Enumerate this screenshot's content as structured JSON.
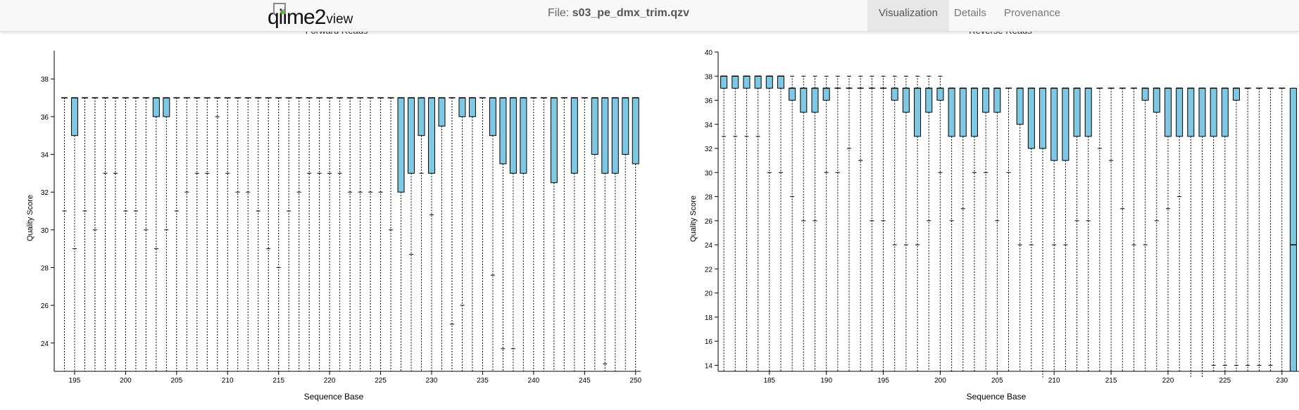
{
  "header": {
    "logo_main": "qiime2",
    "logo_sub": "view",
    "file_prefix": "File:",
    "file_name": "s03_pe_dmx_trim.qzv",
    "tabs": [
      {
        "label": "Visualization",
        "active": true
      },
      {
        "label": "Details",
        "active": false
      },
      {
        "label": "Provenance",
        "active": false
      }
    ]
  },
  "chart_data": [
    {
      "type": "box",
      "title": "Forward Reads",
      "xlabel": "Sequence Base",
      "ylabel": "Quality Score",
      "xlim": [
        193,
        250.5
      ],
      "ylim": [
        22.5,
        39.5
      ],
      "xticks": [
        195,
        200,
        205,
        210,
        215,
        220,
        225,
        230,
        235,
        240,
        245,
        250
      ],
      "yticks": [
        24,
        26,
        28,
        30,
        32,
        34,
        36,
        38
      ],
      "box_color": "#7ec8e3",
      "boxes": [
        {
          "x": 194,
          "lw": 31,
          "q1": 37,
          "med": 37,
          "q3": 37,
          "uw": 37
        },
        {
          "x": 195,
          "lw": 29,
          "q1": 35,
          "med": 37,
          "q3": 37,
          "uw": 37
        },
        {
          "x": 196,
          "lw": 31,
          "q1": 37,
          "med": 37,
          "q3": 37,
          "uw": 37
        },
        {
          "x": 197,
          "lw": 30,
          "q1": 37,
          "med": 37,
          "q3": 37,
          "uw": 37
        },
        {
          "x": 198,
          "lw": 33,
          "q1": 37,
          "med": 37,
          "q3": 37,
          "uw": 37
        },
        {
          "x": 199,
          "lw": 33,
          "q1": 37,
          "med": 37,
          "q3": 37,
          "uw": 37
        },
        {
          "x": 200,
          "lw": 31,
          "q1": 37,
          "med": 37,
          "q3": 37,
          "uw": 37
        },
        {
          "x": 201,
          "lw": 31,
          "q1": 37,
          "med": 37,
          "q3": 37,
          "uw": 37
        },
        {
          "x": 202,
          "lw": 30,
          "q1": 37,
          "med": 37,
          "q3": 37,
          "uw": 37
        },
        {
          "x": 203,
          "lw": 29,
          "q1": 36,
          "med": 37,
          "q3": 37,
          "uw": 37
        },
        {
          "x": 204,
          "lw": 30,
          "q1": 36,
          "med": 37,
          "q3": 37,
          "uw": 37
        },
        {
          "x": 205,
          "lw": 31,
          "q1": 37,
          "med": 37,
          "q3": 37,
          "uw": 37
        },
        {
          "x": 206,
          "lw": 32,
          "q1": 37,
          "med": 37,
          "q3": 37,
          "uw": 37
        },
        {
          "x": 207,
          "lw": 33,
          "q1": 37,
          "med": 37,
          "q3": 37,
          "uw": 37
        },
        {
          "x": 208,
          "lw": 33,
          "q1": 37,
          "med": 37,
          "q3": 37,
          "uw": 37
        },
        {
          "x": 209,
          "lw": 36,
          "q1": 37,
          "med": 37,
          "q3": 37,
          "uw": 37
        },
        {
          "x": 210,
          "lw": 33,
          "q1": 37,
          "med": 37,
          "q3": 37,
          "uw": 37
        },
        {
          "x": 211,
          "lw": 32,
          "q1": 37,
          "med": 37,
          "q3": 37,
          "uw": 37
        },
        {
          "x": 212,
          "lw": 32,
          "q1": 37,
          "med": 37,
          "q3": 37,
          "uw": 37
        },
        {
          "x": 213,
          "lw": 31,
          "q1": 37,
          "med": 37,
          "q3": 37,
          "uw": 37
        },
        {
          "x": 214,
          "lw": 29,
          "q1": 37,
          "med": 37,
          "q3": 37,
          "uw": 37
        },
        {
          "x": 215,
          "lw": 28,
          "q1": 37,
          "med": 37,
          "q3": 37,
          "uw": 37
        },
        {
          "x": 216,
          "lw": 31,
          "q1": 37,
          "med": 37,
          "q3": 37,
          "uw": 37
        },
        {
          "x": 217,
          "lw": 32,
          "q1": 37,
          "med": 37,
          "q3": 37,
          "uw": 37
        },
        {
          "x": 218,
          "lw": 33,
          "q1": 37,
          "med": 37,
          "q3": 37,
          "uw": 37
        },
        {
          "x": 219,
          "lw": 33,
          "q1": 37,
          "med": 37,
          "q3": 37,
          "uw": 37
        },
        {
          "x": 220,
          "lw": 33,
          "q1": 37,
          "med": 37,
          "q3": 37,
          "uw": 37
        },
        {
          "x": 221,
          "lw": 33,
          "q1": 37,
          "med": 37,
          "q3": 37,
          "uw": 37
        },
        {
          "x": 222,
          "lw": 32,
          "q1": 37,
          "med": 37,
          "q3": 37,
          "uw": 37
        },
        {
          "x": 223,
          "lw": 32,
          "q1": 37,
          "med": 37,
          "q3": 37,
          "uw": 37
        },
        {
          "x": 224,
          "lw": 32,
          "q1": 37,
          "med": 37,
          "q3": 37,
          "uw": 37
        },
        {
          "x": 225,
          "lw": 32,
          "q1": 37,
          "med": 37,
          "q3": 37,
          "uw": 37
        },
        {
          "x": 226,
          "lw": 30,
          "q1": 37,
          "med": 37,
          "q3": 37,
          "uw": 37
        },
        {
          "x": 227,
          "lw": 22.5,
          "q1": 32,
          "med": 37,
          "q3": 37,
          "uw": 37
        },
        {
          "x": 228,
          "lw": 28.7,
          "q1": 33,
          "med": 37,
          "q3": 37,
          "uw": 37
        },
        {
          "x": 229,
          "lw": 33,
          "q1": 35,
          "med": 37,
          "q3": 37,
          "uw": 37
        },
        {
          "x": 230,
          "lw": 30.8,
          "q1": 33,
          "med": 37,
          "q3": 37,
          "uw": 37
        },
        {
          "x": 231,
          "lw": 22.5,
          "q1": 35.5,
          "med": 37,
          "q3": 37,
          "uw": 37
        },
        {
          "x": 232,
          "lw": 25,
          "q1": 37,
          "med": 37,
          "q3": 37,
          "uw": 37
        },
        {
          "x": 233,
          "lw": 26,
          "q1": 36,
          "med": 37,
          "q3": 37,
          "uw": 37
        },
        {
          "x": 234,
          "lw": 22.5,
          "q1": 36,
          "med": 37,
          "q3": 37,
          "uw": 37
        },
        {
          "x": 235,
          "lw": 22.5,
          "q1": 37,
          "med": 37,
          "q3": 37,
          "uw": 37
        },
        {
          "x": 236,
          "lw": 27.6,
          "q1": 35,
          "med": 37,
          "q3": 37,
          "uw": 37
        },
        {
          "x": 237,
          "lw": 23.7,
          "q1": 33.5,
          "med": 37,
          "q3": 37,
          "uw": 37
        },
        {
          "x": 238,
          "lw": 23.7,
          "q1": 33,
          "med": 37,
          "q3": 37,
          "uw": 37
        },
        {
          "x": 239,
          "lw": 22.5,
          "q1": 33,
          "med": 37,
          "q3": 37,
          "uw": 37
        },
        {
          "x": 240,
          "lw": 22.5,
          "q1": 37,
          "med": 37,
          "q3": 37,
          "uw": 37
        },
        {
          "x": 241,
          "lw": 22.5,
          "q1": 37,
          "med": 37,
          "q3": 37,
          "uw": 37
        },
        {
          "x": 242,
          "lw": 22.5,
          "q1": 32.5,
          "med": 37,
          "q3": 37,
          "uw": 37
        },
        {
          "x": 243,
          "lw": 22.5,
          "q1": 37,
          "med": 37,
          "q3": 37,
          "uw": 37
        },
        {
          "x": 244,
          "lw": 22.5,
          "q1": 33,
          "med": 37,
          "q3": 37,
          "uw": 37
        },
        {
          "x": 245,
          "lw": 22.5,
          "q1": 37,
          "med": 37,
          "q3": 37,
          "uw": 37
        },
        {
          "x": 246,
          "lw": 22.5,
          "q1": 34,
          "med": 37,
          "q3": 37,
          "uw": 37
        },
        {
          "x": 247,
          "lw": 22.9,
          "q1": 33,
          "med": 37,
          "q3": 37,
          "uw": 37
        },
        {
          "x": 248,
          "lw": 22.4,
          "q1": 33,
          "med": 37,
          "q3": 37,
          "uw": 37
        },
        {
          "x": 249,
          "lw": 22.5,
          "q1": 34,
          "med": 37,
          "q3": 37,
          "uw": 37
        },
        {
          "x": 250,
          "lw": 22.5,
          "q1": 33.5,
          "med": 37,
          "q3": 37,
          "uw": 37
        }
      ]
    },
    {
      "type": "box",
      "title": "Reverse Reads",
      "xlabel": "Sequence Base",
      "ylabel": "Quality Score",
      "xlim": [
        180.5,
        231.5
      ],
      "ylim": [
        13.5,
        40
      ],
      "xticks": [
        185,
        190,
        195,
        200,
        205,
        210,
        215,
        220,
        225,
        230
      ],
      "yticks": [
        14,
        16,
        18,
        20,
        22,
        24,
        26,
        28,
        30,
        32,
        34,
        36,
        38,
        40
      ],
      "box_color": "#7ec8e3",
      "boxes": [
        {
          "x": 181,
          "lw": 33,
          "q1": 37,
          "med": 38,
          "q3": 38,
          "uw": 38
        },
        {
          "x": 182,
          "lw": 33,
          "q1": 37,
          "med": 38,
          "q3": 38,
          "uw": 38
        },
        {
          "x": 183,
          "lw": 33,
          "q1": 37,
          "med": 38,
          "q3": 38,
          "uw": 38
        },
        {
          "x": 184,
          "lw": 33,
          "q1": 37,
          "med": 38,
          "q3": 38,
          "uw": 38
        },
        {
          "x": 185,
          "lw": 30,
          "q1": 37,
          "med": 38,
          "q3": 38,
          "uw": 38
        },
        {
          "x": 186,
          "lw": 30,
          "q1": 37,
          "med": 38,
          "q3": 38,
          "uw": 38
        },
        {
          "x": 187,
          "lw": 28,
          "q1": 36,
          "med": 37,
          "q3": 37,
          "uw": 38
        },
        {
          "x": 188,
          "lw": 26,
          "q1": 35,
          "med": 37,
          "q3": 37,
          "uw": 38
        },
        {
          "x": 189,
          "lw": 26,
          "q1": 35,
          "med": 37,
          "q3": 37,
          "uw": 38
        },
        {
          "x": 190,
          "lw": 30,
          "q1": 36,
          "med": 37,
          "q3": 37,
          "uw": 38
        },
        {
          "x": 191,
          "lw": 30,
          "q1": 37,
          "med": 37,
          "q3": 37,
          "uw": 38
        },
        {
          "x": 192,
          "lw": 32,
          "q1": 37,
          "med": 37,
          "q3": 37,
          "uw": 38
        },
        {
          "x": 193,
          "lw": 31,
          "q1": 37,
          "med": 37,
          "q3": 37,
          "uw": 38
        },
        {
          "x": 194,
          "lw": 26,
          "q1": 37,
          "med": 37,
          "q3": 37,
          "uw": 38
        },
        {
          "x": 195,
          "lw": 26,
          "q1": 37,
          "med": 37,
          "q3": 37,
          "uw": 38
        },
        {
          "x": 196,
          "lw": 24,
          "q1": 36,
          "med": 37,
          "q3": 37,
          "uw": 38
        },
        {
          "x": 197,
          "lw": 24,
          "q1": 35,
          "med": 37,
          "q3": 37,
          "uw": 38
        },
        {
          "x": 198,
          "lw": 24,
          "q1": 33,
          "med": 37,
          "q3": 37,
          "uw": 38
        },
        {
          "x": 199,
          "lw": 26,
          "q1": 35,
          "med": 37,
          "q3": 37,
          "uw": 38
        },
        {
          "x": 200,
          "lw": 30,
          "q1": 36,
          "med": 37,
          "q3": 37,
          "uw": 38
        },
        {
          "x": 201,
          "lw": 26,
          "q1": 33,
          "med": 37,
          "q3": 37,
          "uw": 37
        },
        {
          "x": 202,
          "lw": 27,
          "q1": 33,
          "med": 37,
          "q3": 37,
          "uw": 37
        },
        {
          "x": 203,
          "lw": 30,
          "q1": 33,
          "med": 37,
          "q3": 37,
          "uw": 37
        },
        {
          "x": 204,
          "lw": 30,
          "q1": 35,
          "med": 37,
          "q3": 37,
          "uw": 37
        },
        {
          "x": 205,
          "lw": 26,
          "q1": 35,
          "med": 37,
          "q3": 37,
          "uw": 37
        },
        {
          "x": 206,
          "lw": 30,
          "q1": 37,
          "med": 37,
          "q3": 37,
          "uw": 37
        },
        {
          "x": 207,
          "lw": 24,
          "q1": 34,
          "med": 37,
          "q3": 37,
          "uw": 37
        },
        {
          "x": 208,
          "lw": 24,
          "q1": 32,
          "med": 37,
          "q3": 37,
          "uw": 37
        },
        {
          "x": 209,
          "lw": 13,
          "q1": 32,
          "med": 37,
          "q3": 37,
          "uw": 37
        },
        {
          "x": 210,
          "lw": 24,
          "q1": 31,
          "med": 37,
          "q3": 37,
          "uw": 37
        },
        {
          "x": 211,
          "lw": 24,
          "q1": 31,
          "med": 37,
          "q3": 37,
          "uw": 37
        },
        {
          "x": 212,
          "lw": 26,
          "q1": 33,
          "med": 37,
          "q3": 37,
          "uw": 37
        },
        {
          "x": 213,
          "lw": 26,
          "q1": 33,
          "med": 37,
          "q3": 37,
          "uw": 37
        },
        {
          "x": 214,
          "lw": 32,
          "q1": 37,
          "med": 37,
          "q3": 37,
          "uw": 37
        },
        {
          "x": 215,
          "lw": 31,
          "q1": 37,
          "med": 37,
          "q3": 37,
          "uw": 37
        },
        {
          "x": 216,
          "lw": 27,
          "q1": 37,
          "med": 37,
          "q3": 37,
          "uw": 37
        },
        {
          "x": 217,
          "lw": 24,
          "q1": 37,
          "med": 37,
          "q3": 37,
          "uw": 37
        },
        {
          "x": 218,
          "lw": 24,
          "q1": 36,
          "med": 37,
          "q3": 37,
          "uw": 37
        },
        {
          "x": 219,
          "lw": 26,
          "q1": 35,
          "med": 37,
          "q3": 37,
          "uw": 37
        },
        {
          "x": 220,
          "lw": 27,
          "q1": 33,
          "med": 37,
          "q3": 37,
          "uw": 37
        },
        {
          "x": 221,
          "lw": 28,
          "q1": 33,
          "med": 37,
          "q3": 37,
          "uw": 37
        },
        {
          "x": 222,
          "lw": 13,
          "q1": 33,
          "med": 37,
          "q3": 37,
          "uw": 37
        },
        {
          "x": 223,
          "lw": 13,
          "q1": 33,
          "med": 37,
          "q3": 37,
          "uw": 37
        },
        {
          "x": 224,
          "lw": 14,
          "q1": 33,
          "med": 37,
          "q3": 37,
          "uw": 37
        },
        {
          "x": 225,
          "lw": 14,
          "q1": 33,
          "med": 37,
          "q3": 37,
          "uw": 37
        },
        {
          "x": 226,
          "lw": 14,
          "q1": 36,
          "med": 37,
          "q3": 37,
          "uw": 37
        },
        {
          "x": 227,
          "lw": 14,
          "q1": 37,
          "med": 37,
          "q3": 37,
          "uw": 37
        },
        {
          "x": 228,
          "lw": 14,
          "q1": 37,
          "med": 37,
          "q3": 37,
          "uw": 37
        },
        {
          "x": 229,
          "lw": 14,
          "q1": 37,
          "med": 37,
          "q3": 37,
          "uw": 37
        },
        {
          "x": 230,
          "lw": 13.5,
          "q1": 37,
          "med": 37,
          "q3": 37,
          "uw": 37
        },
        {
          "x": 231,
          "lw": 13.5,
          "q1": 13.5,
          "med": 24,
          "q3": 37,
          "uw": 37
        }
      ]
    }
  ]
}
